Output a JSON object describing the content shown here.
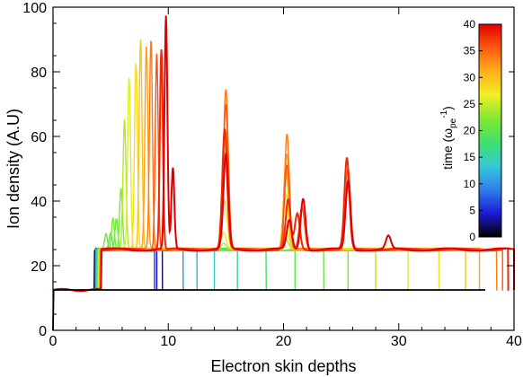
{
  "chart_data": {
    "type": "line",
    "title": "",
    "xlabel": "Electron skin depths",
    "ylabel": "Ion density (A.U)",
    "xlim": [
      0,
      40
    ],
    "ylim": [
      0,
      100
    ],
    "xticks": [
      0,
      10,
      20,
      30,
      40
    ],
    "yticks": [
      0,
      20,
      40,
      60,
      80,
      100
    ],
    "grid": false,
    "colorbar": {
      "label": "time (ω",
      "label_sub": "pe",
      "label_sup": "-1",
      "label_close": ")",
      "range": [
        0,
        40
      ],
      "ticks": [
        0,
        5,
        10,
        15,
        20,
        25,
        30,
        35,
        40
      ],
      "colormap": [
        "#000000",
        "#1b1bd6",
        "#2f7fe8",
        "#36c8d8",
        "#40e070",
        "#7fe830",
        "#f2ef28",
        "#ffb01a",
        "#ff5a10",
        "#e00000"
      ]
    },
    "baseline": {
      "density": 12.5,
      "time": 0
    },
    "upstream_density": 25,
    "series": [
      {
        "time": 0,
        "front": 9.0,
        "peaks": []
      },
      {
        "time": 2,
        "front": 9.5,
        "peaks": []
      },
      {
        "time": 4,
        "front": 9.0,
        "peaks": []
      },
      {
        "time": 6,
        "front": 8.8,
        "peaks": []
      },
      {
        "time": 10,
        "front": 11.3,
        "peaks": []
      },
      {
        "time": 12,
        "front": 12.5,
        "peaks": []
      },
      {
        "time": 14,
        "front": 14.0,
        "peaks": []
      },
      {
        "time": 16,
        "front": 16.0,
        "peaks": []
      },
      {
        "time": 18,
        "front": 18.5,
        "peaks": []
      },
      {
        "time": 20,
        "front": 21.0,
        "peaks": [
          [
            4.2,
            25
          ],
          [
            5.0,
            30
          ]
        ]
      },
      {
        "time": 21,
        "front": 23.5,
        "peaks": [
          [
            4.6,
            30
          ],
          [
            5.5,
            35
          ]
        ]
      },
      {
        "time": 22,
        "front": 25.6,
        "peaks": [
          [
            5.2,
            35
          ],
          [
            5.9,
            44
          ]
        ]
      },
      {
        "time": 24,
        "front": 28.0,
        "peaks": [
          [
            6.2,
            65
          ],
          [
            14.8,
            27
          ],
          [
            20.2,
            28
          ]
        ]
      },
      {
        "time": 26,
        "front": 30.8,
        "peaks": [
          [
            6.6,
            78
          ],
          [
            14.8,
            30
          ],
          [
            20.2,
            32
          ]
        ]
      },
      {
        "time": 28,
        "front": 33.5,
        "peaks": [
          [
            7.2,
            83
          ],
          [
            14.9,
            40
          ],
          [
            20.2,
            42
          ]
        ]
      },
      {
        "time": 30,
        "front": 35.8,
        "peaks": [
          [
            7.6,
            90
          ],
          [
            14.9,
            55
          ],
          [
            20.2,
            50
          ]
        ]
      },
      {
        "time": 32,
        "front": 37.0,
        "peaks": [
          [
            8.1,
            88
          ],
          [
            15.0,
            62
          ],
          [
            20.3,
            55
          ]
        ]
      },
      {
        "time": 34,
        "front": 38.5,
        "peaks": [
          [
            8.5,
            90
          ],
          [
            15.0,
            75
          ],
          [
            20.3,
            61
          ],
          [
            25.6,
            45
          ]
        ]
      },
      {
        "time": 36,
        "front": 39.0,
        "peaks": [
          [
            9.0,
            86
          ],
          [
            15.0,
            70
          ],
          [
            20.3,
            51
          ],
          [
            25.6,
            50
          ],
          [
            21.6,
            38
          ]
        ]
      },
      {
        "time": 38,
        "front": 39.5,
        "peaks": [
          [
            9.4,
            87
          ],
          [
            14.9,
            62
          ],
          [
            20.4,
            40
          ],
          [
            25.5,
            53
          ],
          [
            21.2,
            36
          ]
        ]
      },
      {
        "time": 40,
        "front": 40.0,
        "peaks": [
          [
            9.8,
            97
          ],
          [
            10.4,
            50
          ],
          [
            15.0,
            54
          ],
          [
            20.5,
            34
          ],
          [
            21.7,
            41
          ],
          [
            25.6,
            46
          ],
          [
            29.1,
            29
          ]
        ]
      }
    ]
  }
}
